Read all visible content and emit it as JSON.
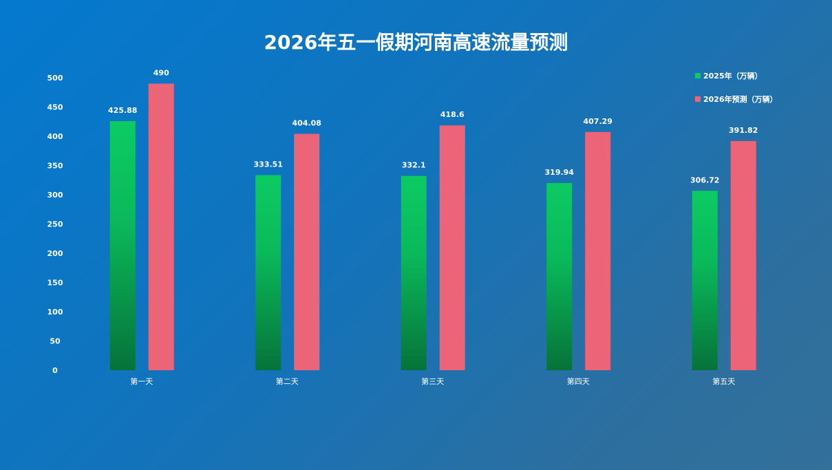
{
  "chart_data": {
    "type": "bar",
    "title": "2026年五一假期河南高速流量预测",
    "categories": [
      "第一天",
      "第二天",
      "第三天",
      "第四天",
      "第五天"
    ],
    "series": [
      {
        "name": "2025年（万辆）",
        "values": [
          425.88,
          333.51,
          332.1,
          319.94,
          306.72
        ],
        "color": "#0ccb63",
        "color_bottom": "#06733a"
      },
      {
        "name": "2026年预测（万辆）",
        "values": [
          490,
          404.08,
          418.6,
          407.29,
          391.82
        ],
        "color": "#ec6478"
      }
    ],
    "ylim": [
      0,
      500
    ],
    "yticks": [
      0,
      50,
      100,
      150,
      200,
      250,
      300,
      350,
      400,
      450,
      500
    ],
    "grid": false,
    "legend": "top-right"
  }
}
